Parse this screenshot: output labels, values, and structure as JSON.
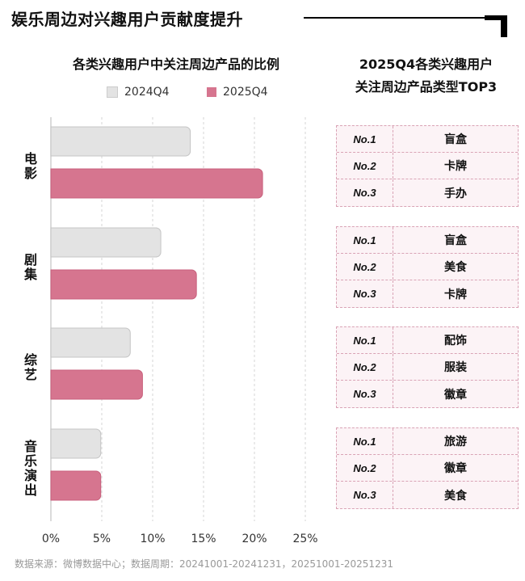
{
  "title": "娱乐周边对兴趣用户贡献度提升",
  "chart_data": {
    "type": "bar",
    "orientation": "horizontal",
    "title": "各类兴趣用户中关注周边产品的比例",
    "categories": [
      "电影",
      "剧集",
      "综艺",
      "音乐演出"
    ],
    "series": [
      {
        "name": "2024Q4",
        "values": [
          13.7,
          10.8,
          7.8,
          4.9
        ],
        "color": "#e3e3e3"
      },
      {
        "name": "2025Q4",
        "values": [
          20.8,
          14.3,
          9.0,
          4.9
        ],
        "color": "#d6758f"
      }
    ],
    "xlim": [
      0,
      25
    ],
    "xticks": [
      "0%",
      "5%",
      "10%",
      "15%",
      "20%",
      "25%"
    ],
    "grid": true,
    "legend": "top"
  },
  "table": {
    "title_line1": "2025Q4各类兴趣用户",
    "title_line2": "关注周边产品类型TOP3",
    "groups": [
      {
        "rows": [
          {
            "rank": "No.1",
            "item": "盲盒"
          },
          {
            "rank": "No.2",
            "item": "卡牌"
          },
          {
            "rank": "No.3",
            "item": "手办"
          }
        ]
      },
      {
        "rows": [
          {
            "rank": "No.1",
            "item": "盲盒"
          },
          {
            "rank": "No.2",
            "item": "美食"
          },
          {
            "rank": "No.3",
            "item": "卡牌"
          }
        ]
      },
      {
        "rows": [
          {
            "rank": "No.1",
            "item": "配饰"
          },
          {
            "rank": "No.2",
            "item": "服装"
          },
          {
            "rank": "No.3",
            "item": "徽章"
          }
        ]
      },
      {
        "rows": [
          {
            "rank": "No.1",
            "item": "旅游"
          },
          {
            "rank": "No.2",
            "item": "徽章"
          },
          {
            "rank": "No.3",
            "item": "美食"
          }
        ]
      }
    ]
  },
  "footer": "数据来源：微博数据中心；数据周期：20241001-20241231，20251001-20251231"
}
